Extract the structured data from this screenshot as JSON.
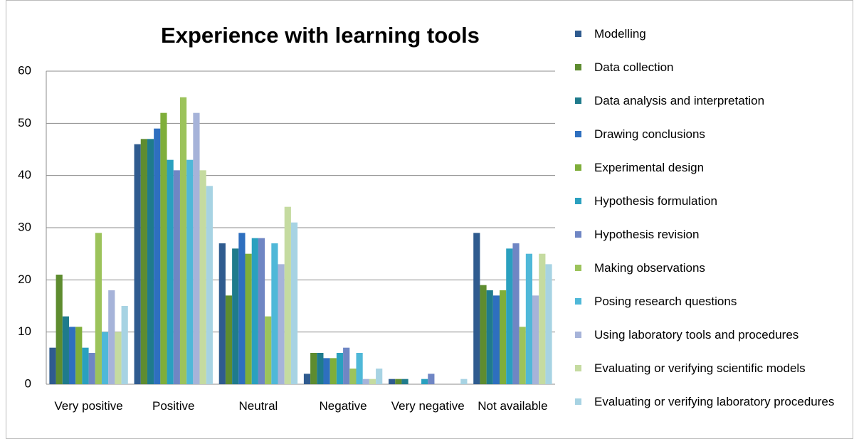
{
  "chart_data": {
    "type": "bar",
    "title": "Experience with learning tools",
    "categories": [
      "Very positive",
      "Positive",
      "Neutral",
      "Negative",
      "Very negative",
      "Not available"
    ],
    "series": [
      {
        "name": "Modelling",
        "color": "#2f5b8f",
        "values": [
          7,
          46,
          27,
          2,
          1,
          29
        ]
      },
      {
        "name": "Data collection",
        "color": "#5e8c2f",
        "values": [
          21,
          47,
          17,
          6,
          1,
          19
        ]
      },
      {
        "name": "Data analysis and interpretation",
        "color": "#1f7b8c",
        "values": [
          13,
          47,
          26,
          6,
          1,
          18
        ]
      },
      {
        "name": "Drawing conclusions",
        "color": "#2e6fbf",
        "values": [
          11,
          49,
          29,
          5,
          0,
          17
        ]
      },
      {
        "name": "Experimental design",
        "color": "#7fae3a",
        "values": [
          11,
          52,
          25,
          5,
          0,
          18
        ]
      },
      {
        "name": "Hypothesis formulation",
        "color": "#2aa0bf",
        "values": [
          7,
          43,
          28,
          6,
          1,
          26
        ]
      },
      {
        "name": "Hypothesis revision",
        "color": "#6f86c4",
        "values": [
          6,
          41,
          28,
          7,
          2,
          27
        ]
      },
      {
        "name": "Making observations",
        "color": "#9cc35b",
        "values": [
          29,
          55,
          13,
          3,
          0,
          11
        ]
      },
      {
        "name": "Posing research questions",
        "color": "#4fb8d8",
        "values": [
          10,
          43,
          27,
          6,
          0,
          25
        ]
      },
      {
        "name": "Using laboratory tools and procedures",
        "color": "#a6b3d9",
        "values": [
          18,
          52,
          23,
          1,
          0,
          17
        ]
      },
      {
        "name": "Evaluating or verifying scientific models",
        "color": "#c5dba0",
        "values": [
          10,
          41,
          34,
          1,
          0,
          25
        ]
      },
      {
        "name": "Evaluating or verifying laboratory procedures",
        "color": "#a7d3e3",
        "values": [
          15,
          38,
          31,
          3,
          1,
          23
        ]
      }
    ],
    "ylim": [
      0,
      60
    ],
    "yticks": [
      0,
      10,
      20,
      30,
      40,
      50,
      60
    ],
    "grid": true,
    "legend": "right"
  }
}
